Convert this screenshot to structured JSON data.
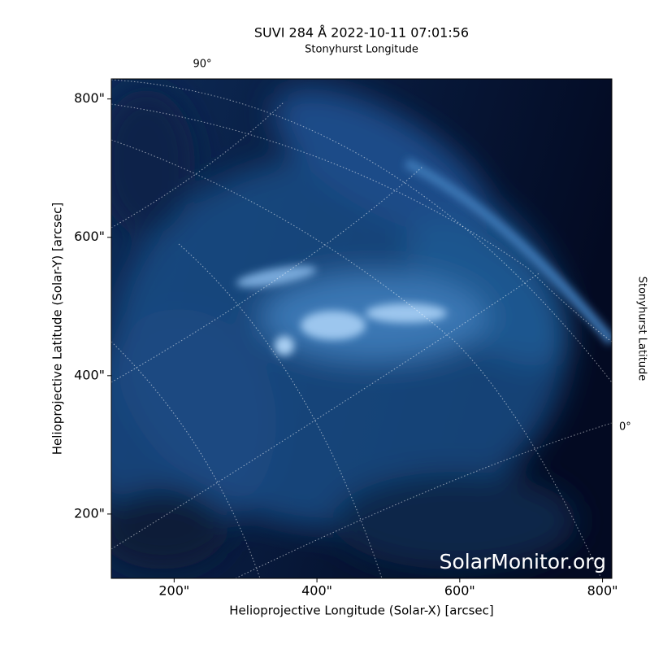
{
  "chart_data": {
    "type": "image",
    "title": "SUVI 284 Å 2022-10-11 07:01:56",
    "xlabel": "Helioprojective Longitude (Solar-X) [arcsec]",
    "ylabel": "Helioprojective Latitude (Solar-Y) [arcsec]",
    "top_label": "Stonyhurst Longitude",
    "right_label": "Stonyhurst Latitude",
    "top_tick_labels": [
      "90°"
    ],
    "right_tick_labels": [
      "0°"
    ],
    "watermark": "SolarMonitor.org",
    "xlim": [
      112,
      813
    ],
    "ylim": [
      107,
      829
    ],
    "xticks": [
      {
        "value": 200,
        "label": "200\""
      },
      {
        "value": 400,
        "label": "400\""
      },
      {
        "value": 600,
        "label": "600\""
      },
      {
        "value": 800,
        "label": "800\""
      }
    ],
    "yticks": [
      {
        "value": 200,
        "label": "200\""
      },
      {
        "value": 400,
        "label": "400\""
      },
      {
        "value": 600,
        "label": "600\""
      },
      {
        "value": 800,
        "label": "800\""
      }
    ]
  }
}
